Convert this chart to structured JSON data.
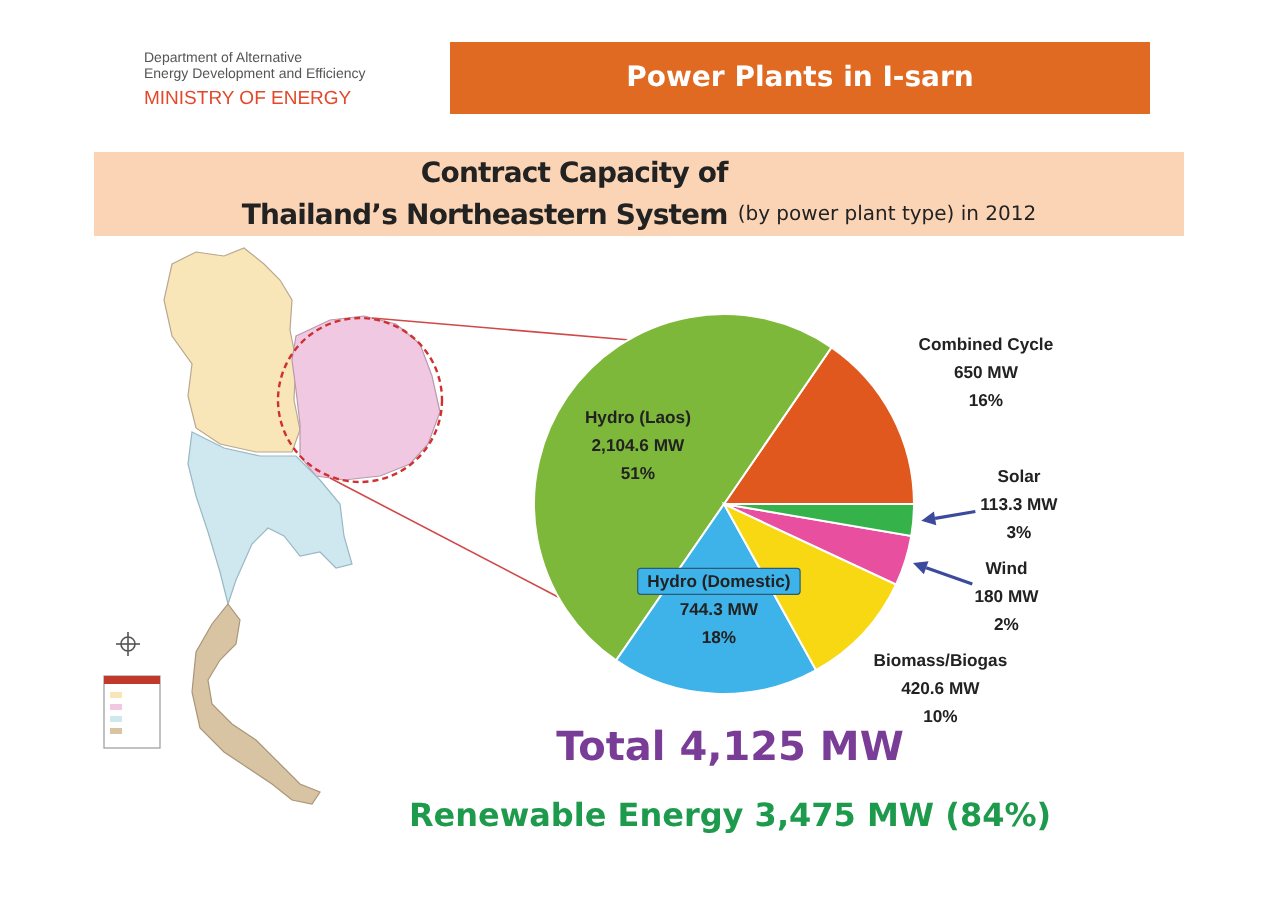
{
  "chart_data": {
    "type": "pie",
    "title": "Power Plants in I-sarn",
    "subtitle": "Contract Capacity of\nThailand’s Northeastern System",
    "annotations": [
      "(by power plant type) in 2012",
      "Total 4,125 MW",
      "Renewable Energy 3,475 MW (84%)",
      "Department of Alternative\nEnergy Development and Efficiency",
      "MINISTRY OF ENERGY"
    ],
    "categories": [
      "Combined Cycle",
      "Hydro (Laos)",
      "Hydro (Domestic)",
      "Biomass/Biogas",
      "Wind",
      "Solar"
    ],
    "values": [
      650,
      2104.6,
      744.3,
      420.6,
      180,
      113.3
    ],
    "colors": [
      "#e0581e",
      "#7db83a",
      "#3eb3ea",
      "#f7d812",
      "#e8509f",
      "#35b34a"
    ],
    "value_labels": [
      "650 MW\n16%",
      "2,104.6 MW\n51%",
      "744.3 MW\n18%",
      "420.6 MW\n10%",
      "180 MW\n2%",
      "113.3 MW\n3%"
    ]
  }
}
